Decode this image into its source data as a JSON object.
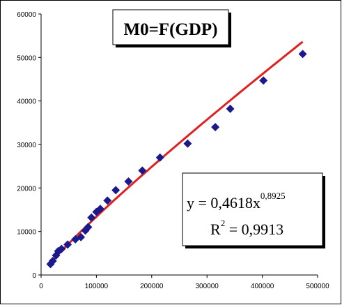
{
  "chart_data": {
    "type": "scatter",
    "title": "M0=F(GDP)",
    "xlabel": "",
    "ylabel": "",
    "xlim": [
      0,
      500000
    ],
    "ylim": [
      0,
      60000
    ],
    "x_ticks": [
      "0",
      "100000",
      "200000",
      "300000",
      "400000",
      "500000"
    ],
    "y_ticks": [
      "0",
      "10000",
      "20000",
      "30000",
      "40000",
      "50000",
      "60000"
    ],
    "grid": false,
    "legend": "none",
    "series": [
      {
        "marker": "diamond",
        "color": "#1a1a8c",
        "points": [
          [
            17000,
            2500
          ],
          [
            21000,
            3200
          ],
          [
            27000,
            4500
          ],
          [
            31000,
            5500
          ],
          [
            37000,
            6000
          ],
          [
            48000,
            7000
          ],
          [
            62000,
            8200
          ],
          [
            72000,
            8700
          ],
          [
            80000,
            10200
          ],
          [
            85000,
            11000
          ],
          [
            91000,
            13200
          ],
          [
            100000,
            14500
          ],
          [
            107000,
            15200
          ],
          [
            120000,
            17100
          ],
          [
            135000,
            19500
          ],
          [
            158000,
            21500
          ],
          [
            183000,
            24000
          ],
          [
            215000,
            27000
          ],
          [
            265000,
            30200
          ],
          [
            315000,
            34000
          ],
          [
            342000,
            38200
          ],
          [
            402000,
            44700
          ],
          [
            473000,
            50800
          ]
        ]
      }
    ],
    "trendline": {
      "type": "power",
      "color": "#e02020",
      "a": 0.4618,
      "b": 0.8925,
      "x_range": [
        17000,
        473000
      ]
    },
    "annotations": {
      "equation_prefix": "y = 0,4618x",
      "equation_exponent": "0,8925",
      "r2_prefix": "R",
      "r2_exponent": "2",
      "r2_suffix": " = 0,9913"
    }
  }
}
